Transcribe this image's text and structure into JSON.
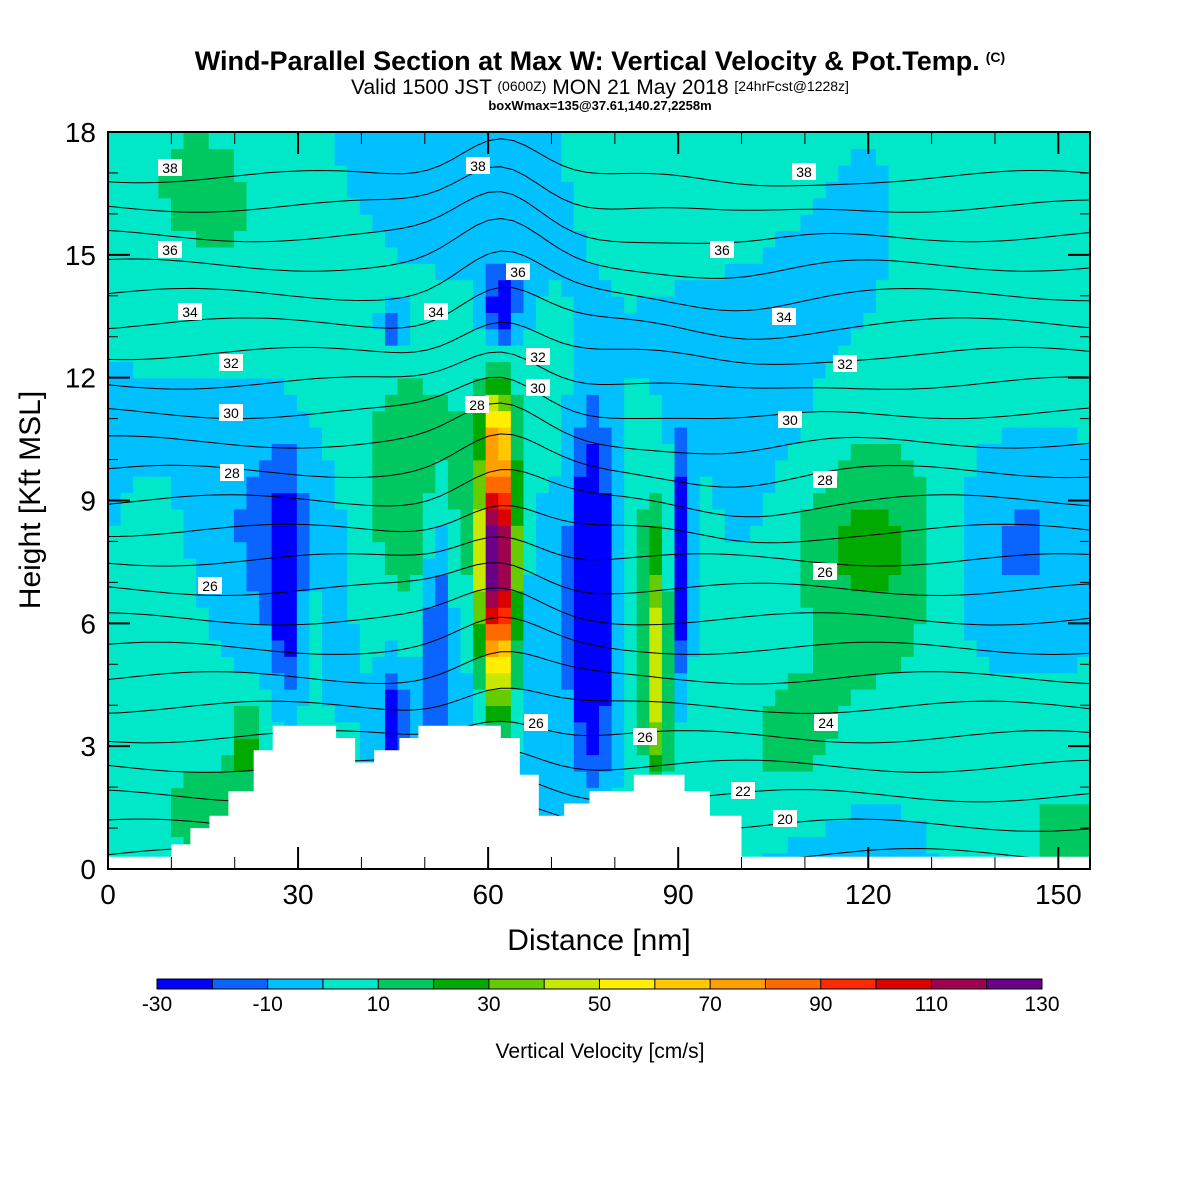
{
  "title": {
    "main": "Wind-Parallel Section at Max W: Vertical Velocity & Pot.Temp.",
    "copyright": "(C)",
    "valid_prefix": "Valid 1500 JST",
    "valid_utc": "(0600Z)",
    "valid_date": "MON 21 May 2018",
    "forecast": "[24hrFcst@1228z]",
    "box_info": "boxWmax=135@37.61,140.27,2258m"
  },
  "chart_data": {
    "type": "heatmap",
    "xlabel": "Distance [nm]",
    "ylabel": "Height [Kft MSL]",
    "xlim": [
      0,
      155
    ],
    "ylim": [
      0,
      18
    ],
    "x_ticks": [
      0,
      30,
      60,
      90,
      120,
      150
    ],
    "y_ticks": [
      0,
      3,
      6,
      9,
      12,
      15,
      18
    ],
    "colorbar": {
      "label": "Vertical Velocity [cm/s]",
      "levels": [
        -30,
        -20,
        -10,
        0,
        10,
        20,
        30,
        40,
        50,
        60,
        70,
        80,
        90,
        100,
        110,
        120,
        130
      ],
      "tick_labels": [
        "-30",
        "-10",
        "10",
        "30",
        "50",
        "70",
        "90",
        "110",
        "130"
      ],
      "colors": [
        "#0000ff",
        "#0a64ff",
        "#00c0ff",
        "#00e8c8",
        "#00c860",
        "#00aa00",
        "#66cc00",
        "#c8e800",
        "#ffee00",
        "#ffc800",
        "#ffa000",
        "#ff6a00",
        "#ff2a00",
        "#dd0000",
        "#a00050",
        "#6a0088"
      ]
    },
    "theta_contour_labels": [
      "20",
      "22",
      "24",
      "26",
      "28",
      "30",
      "32",
      "34",
      "36",
      "38"
    ],
    "vertical_velocity_max": {
      "value_cm_s": 135,
      "lat": 37.61,
      "lon": 140.27,
      "height_m": 2258
    },
    "terrain_profile_kft": [
      [
        0,
        0.3
      ],
      [
        10,
        0.6
      ],
      [
        13,
        1.0
      ],
      [
        16,
        1.3
      ],
      [
        19,
        1.9
      ],
      [
        23,
        2.9
      ],
      [
        26,
        3.5
      ],
      [
        36,
        3.2
      ],
      [
        39,
        2.6
      ],
      [
        42,
        2.9
      ],
      [
        46,
        3.2
      ],
      [
        49,
        3.5
      ],
      [
        62,
        3.2
      ],
      [
        65,
        2.3
      ],
      [
        68,
        1.3
      ],
      [
        72,
        1.6
      ],
      [
        76,
        1.9
      ],
      [
        83,
        2.3
      ],
      [
        91,
        1.9
      ],
      [
        95,
        1.3
      ],
      [
        100,
        1.0
      ],
      [
        100,
        0.3
      ],
      [
        155,
        0.3
      ]
    ]
  }
}
